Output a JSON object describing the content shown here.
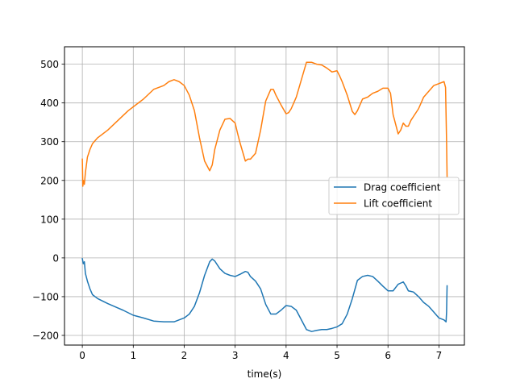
{
  "chart_data": {
    "type": "line",
    "xlabel": "time(s)",
    "ylabel": "",
    "title": "",
    "xlim": [
      -0.35,
      7.5
    ],
    "ylim": [
      -225,
      545
    ],
    "xticks": [
      0,
      1,
      2,
      3,
      4,
      5,
      6,
      7
    ],
    "yticks": [
      -200,
      -100,
      0,
      100,
      200,
      300,
      400,
      500
    ],
    "xtick_labels": [
      "0",
      "1",
      "2",
      "3",
      "4",
      "5",
      "6",
      "7"
    ],
    "ytick_labels": [
      "−200",
      "−100",
      "0",
      "100",
      "200",
      "300",
      "400",
      "500"
    ],
    "grid": true,
    "legend_position": "center-right",
    "series": [
      {
        "name": "Drag coefficient",
        "color": "#1f77b4",
        "x": [
          0,
          0.02,
          0.04,
          0.06,
          0.1,
          0.15,
          0.2,
          0.3,
          0.5,
          0.8,
          1.0,
          1.2,
          1.4,
          1.6,
          1.8,
          2.0,
          2.1,
          2.2,
          2.3,
          2.4,
          2.5,
          2.55,
          2.6,
          2.7,
          2.8,
          2.9,
          3.0,
          3.1,
          3.2,
          3.25,
          3.3,
          3.4,
          3.5,
          3.6,
          3.7,
          3.8,
          3.9,
          4.0,
          4.1,
          4.2,
          4.3,
          4.4,
          4.5,
          4.6,
          4.7,
          4.8,
          4.9,
          5.0,
          5.1,
          5.2,
          5.3,
          5.4,
          5.5,
          5.6,
          5.7,
          5.8,
          5.9,
          6.0,
          6.1,
          6.2,
          6.25,
          6.3,
          6.35,
          6.4,
          6.5,
          6.6,
          6.7,
          6.8,
          6.9,
          7.0,
          7.1,
          7.14,
          7.15,
          7.16
        ],
        "values": [
          -2,
          -15,
          -10,
          -40,
          -60,
          -80,
          -95,
          -105,
          -118,
          -135,
          -148,
          -155,
          -163,
          -165,
          -165,
          -155,
          -145,
          -125,
          -90,
          -45,
          -10,
          -3,
          -8,
          -28,
          -40,
          -45,
          -48,
          -42,
          -35,
          -37,
          -48,
          -60,
          -80,
          -120,
          -145,
          -145,
          -135,
          -123,
          -125,
          -135,
          -160,
          -185,
          -190,
          -187,
          -185,
          -185,
          -182,
          -178,
          -170,
          -145,
          -105,
          -58,
          -48,
          -45,
          -48,
          -60,
          -73,
          -85,
          -85,
          -68,
          -65,
          -62,
          -72,
          -85,
          -88,
          -100,
          -115,
          -125,
          -140,
          -155,
          -160,
          -165,
          -140,
          -72
        ]
      },
      {
        "name": "Lift coefficient",
        "color": "#ff7f0e",
        "x": [
          0,
          0.01,
          0.02,
          0.04,
          0.06,
          0.1,
          0.15,
          0.2,
          0.3,
          0.5,
          0.7,
          0.9,
          1.0,
          1.2,
          1.4,
          1.6,
          1.7,
          1.8,
          1.9,
          2.0,
          2.1,
          2.2,
          2.3,
          2.4,
          2.5,
          2.55,
          2.6,
          2.7,
          2.8,
          2.9,
          3.0,
          3.05,
          3.1,
          3.2,
          3.25,
          3.3,
          3.4,
          3.5,
          3.6,
          3.7,
          3.75,
          3.8,
          3.9,
          4.0,
          4.05,
          4.1,
          4.2,
          4.3,
          4.4,
          4.5,
          4.6,
          4.7,
          4.8,
          4.9,
          5.0,
          5.05,
          5.1,
          5.2,
          5.3,
          5.35,
          5.4,
          5.5,
          5.6,
          5.7,
          5.8,
          5.9,
          6.0,
          6.05,
          6.1,
          6.2,
          6.25,
          6.3,
          6.35,
          6.4,
          6.45,
          6.5,
          6.6,
          6.7,
          6.8,
          6.9,
          7.0,
          7.1,
          7.13,
          7.15,
          7.16
        ],
        "values": [
          255,
          185,
          200,
          190,
          220,
          260,
          280,
          295,
          310,
          330,
          355,
          380,
          390,
          410,
          435,
          445,
          455,
          460,
          455,
          445,
          420,
          380,
          310,
          250,
          225,
          240,
          280,
          330,
          358,
          360,
          348,
          320,
          295,
          250,
          255,
          255,
          270,
          330,
          405,
          435,
          435,
          420,
          395,
          372,
          375,
          385,
          415,
          460,
          505,
          505,
          500,
          498,
          490,
          480,
          483,
          470,
          455,
          420,
          378,
          370,
          380,
          410,
          415,
          425,
          430,
          438,
          438,
          425,
          370,
          320,
          330,
          348,
          340,
          340,
          355,
          365,
          385,
          415,
          430,
          445,
          450,
          455,
          440,
          300,
          210
        ]
      }
    ]
  }
}
